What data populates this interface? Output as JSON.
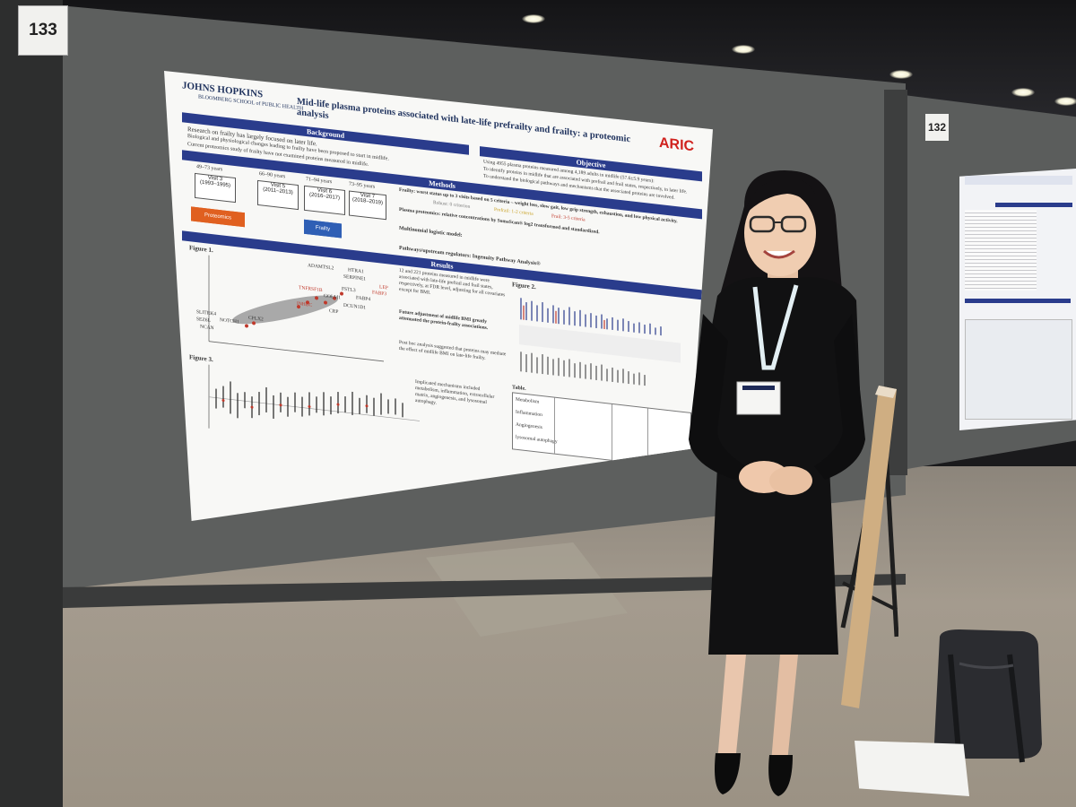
{
  "booth": {
    "number": "133",
    "next_number": "132"
  },
  "poster": {
    "institution": "JOHNS HOPKINS",
    "school": "BLOOMBERG SCHOOL of PUBLIC HEALTH",
    "title": "Mid-life plasma proteins associated with late-life prefrailty and frailty: a proteomic analysis",
    "logo": "ARIC",
    "sections": {
      "background": "Background",
      "objective": "Objective",
      "methods": "Methods",
      "results": "Results"
    },
    "background_points": [
      "Research on frailty has largely focused on later life.",
      "Biological and physiological changes leading to frailty have been proposed to start in midlife.",
      "Current proteomics study of frailty have not examined proteins measured in midlife."
    ],
    "objective_points": [
      "Using 4955 plasma proteins measured among 4,189 adults in midlife (57.6±5.9 years):",
      "To identify proteins in midlife that are associated with prefrail and frail states, respectively, in later life.",
      "To understand the biological pathways and mechanisms that the associated proteins are involved."
    ],
    "visits": [
      {
        "age": "49–73 years",
        "label": "Visit 3",
        "years": "(1993–1995)"
      },
      {
        "age": "66–90 years",
        "label": "Visit 5",
        "years": "(2011–2013)"
      },
      {
        "age": "71–94 years",
        "label": "Visit 6",
        "years": "(2016–2017)"
      },
      {
        "age": "73–95 years",
        "label": "Visit 7",
        "years": "(2018–2019)"
      }
    ],
    "proteomics_label": "Proteomics",
    "frailty_label": "Frailty",
    "methods_points": [
      "Frailty: worst status up to 3 visits based on 5 criteria – weight loss, slow gait, low grip strength, exhaustion, and low physical activity.",
      "Plasma proteomics: relative concentrations by SomaScan® log2 transformed and standardized.",
      "Multinomial logistic model:",
      "Pathways/upstream regulators: Ingenuity Pathway Analysis®"
    ],
    "frailty_categories": [
      "Robust: 0 criterion",
      "Prefrail: 1-2 criteria",
      "Frail: 3-5 criteria"
    ],
    "figures": [
      "Figure 1.",
      "Figure 2.",
      "Figure 3."
    ],
    "results_points": [
      "12 and 221 proteins measured in midlife were associated with late-life prefrail and frail states, respectively, at FDR level, adjusting for all covariates except for BMI.",
      "Future adjustment of midlife BMI greatly attenuated the protein-frailty associations.",
      "Post hoc analysis suggested that proteins may mediate the effect of midlife BMI on late-life frailty.",
      "Implicated mechanisms included metabolism, inflammation, extracellular matrix, angiogenesis, and lysosomal autophagy."
    ],
    "table_title": "Table.",
    "table_rows": [
      "Metabolism",
      "Inflammation",
      "Angiogenesis",
      "lysosomal autophagy"
    ],
    "protein_labels": [
      "ADAMTSL2",
      "HTRA1",
      "SERPINE1",
      "LEP",
      "FABP3",
      "FSTL3",
      "FABP4",
      "GOLM1",
      "DCUN1D1",
      "CRP",
      "INHBC",
      "TNFRSF1B",
      "SLITRK4",
      "SEZ6L",
      "NOTCH1",
      "NCAN",
      "CPLX2"
    ]
  },
  "colors": {
    "band": "#2a3c8c",
    "aric": "#d0211d",
    "proteomics": "#e06020",
    "frailty": "#2f5fb5"
  }
}
